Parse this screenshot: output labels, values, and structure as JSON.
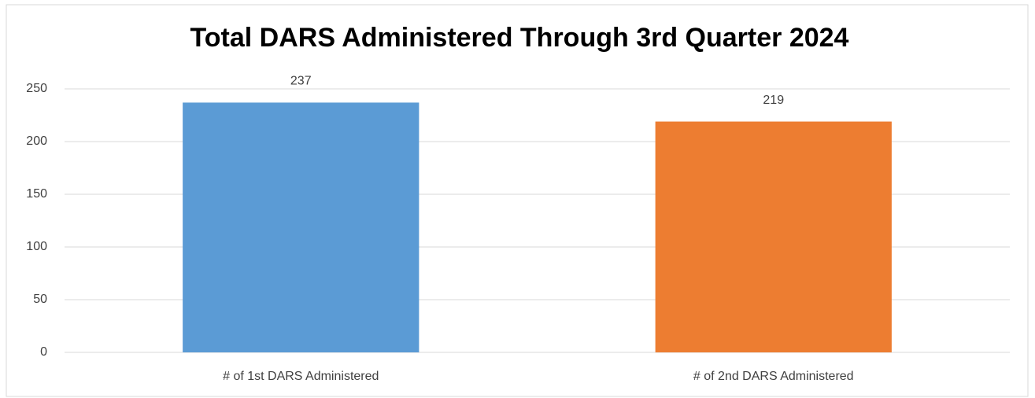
{
  "chart_data": {
    "type": "bar",
    "title": "Total DARS Administered Through 3rd Quarter 2024",
    "categories": [
      "# of 1st DARS Administered",
      "# of 2nd DARS Administered"
    ],
    "values": [
      237,
      219
    ],
    "colors": [
      "#5b9bd5",
      "#ed7d31"
    ],
    "ylim": [
      0,
      250
    ],
    "yticks": [
      0,
      50,
      100,
      150,
      200,
      250
    ],
    "grid": true
  }
}
